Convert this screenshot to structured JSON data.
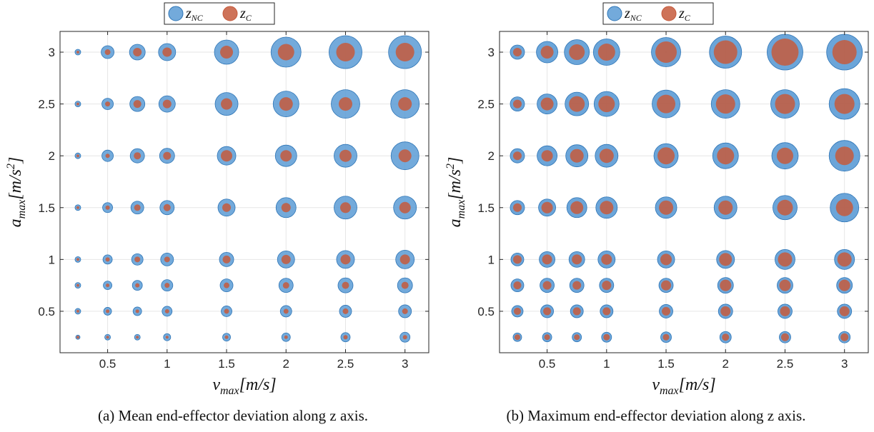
{
  "captions": {
    "a": "(a) Mean end-effector deviation along z axis.",
    "b": "(b) Maximum end-effector deviation along z axis."
  },
  "legend": {
    "nc": {
      "main": "z",
      "sub": "NC"
    },
    "c": {
      "main": "z",
      "sub": "C"
    }
  },
  "axis_labels": {
    "x": {
      "main": "v",
      "sub": "max",
      "unit": "[m/s]"
    },
    "y": {
      "main": "a",
      "sub": "max",
      "unit": "[m/s",
      "sup": "2",
      "close": "]"
    }
  },
  "colors": {
    "nc": "#5b9bd5",
    "nc_stroke": "#2e75b6",
    "c": "#c55a3c"
  },
  "chart_data": [
    {
      "id": "a",
      "type": "scatter",
      "marker": "bubble",
      "title": "",
      "x_values": [
        0.25,
        0.5,
        0.75,
        1,
        1.5,
        2,
        2.5,
        3
      ],
      "y_values": [
        0.25,
        0.5,
        0.75,
        1,
        1.5,
        2,
        2.5,
        3
      ],
      "xticks": [
        "0.5",
        "1",
        "1.5",
        "2",
        "2.5",
        "3"
      ],
      "yticks": [
        "0.5",
        "1",
        "1.5",
        "2",
        "2.5",
        "3"
      ],
      "xlim": [
        0.1,
        3.2
      ],
      "ylim": [
        0.1,
        3.2
      ],
      "grid": true,
      "legend_position": "top-center",
      "series": [
        {
          "name": "z_NC",
          "sizes": [
            [
              3,
              4,
              4,
              5,
              5.5,
              6,
              6.5,
              7
            ],
            [
              4,
              5.5,
              6,
              7,
              7.5,
              8,
              8.5,
              9
            ],
            [
              4,
              6,
              7,
              8,
              9,
              10,
              10.5,
              10.5
            ],
            [
              4,
              6.5,
              8,
              9,
              10,
              12,
              12.5,
              13
            ],
            [
              4,
              7,
              9,
              10,
              12,
              14,
              16,
              16
            ],
            [
              4,
              8,
              10,
              10.5,
              13,
              15,
              16,
              19.5
            ],
            [
              4,
              8,
              10.5,
              11.5,
              16,
              18,
              20,
              20
            ],
            [
              4,
              9,
              11,
              12,
              17,
              21,
              23,
              23
            ]
          ]
        },
        {
          "name": "z_C",
          "sizes": [
            [
              2,
              2,
              2,
              2,
              2.5,
              2.5,
              3,
              3
            ],
            [
              2,
              2.5,
              2.5,
              3,
              3.5,
              3.5,
              4,
              4
            ],
            [
              2,
              2.5,
              3,
              3.5,
              4,
              4.5,
              5,
              5
            ],
            [
              2,
              3,
              4,
              4,
              5.5,
              6.5,
              7,
              7
            ],
            [
              2,
              3,
              4.5,
              5,
              6,
              6.5,
              7.5,
              8
            ],
            [
              2,
              3,
              5,
              5.5,
              8,
              8,
              8.5,
              9
            ],
            [
              2,
              3.5,
              5.5,
              6,
              8,
              9.5,
              9.5,
              9.5
            ],
            [
              2,
              4,
              6,
              6.5,
              9,
              11.5,
              13,
              13
            ]
          ]
        }
      ]
    },
    {
      "id": "b",
      "type": "scatter",
      "marker": "bubble",
      "title": "",
      "x_values": [
        0.25,
        0.5,
        0.75,
        1,
        1.5,
        2,
        2.5,
        3
      ],
      "y_values": [
        0.25,
        0.5,
        0.75,
        1,
        1.5,
        2,
        2.5,
        3
      ],
      "xticks": [
        "0.5",
        "1",
        "1.5",
        "2",
        "2.5",
        "3"
      ],
      "yticks": [
        "0.5",
        "1",
        "1.5",
        "2",
        "2.5",
        "3"
      ],
      "xlim": [
        0.1,
        3.2
      ],
      "ylim": [
        0.1,
        3.2
      ],
      "grid": true,
      "legend_position": "top-center",
      "series": [
        {
          "name": "z_NC",
          "sizes": [
            [
              6,
              6.5,
              6.5,
              7,
              7.5,
              8,
              8,
              8
            ],
            [
              8,
              9,
              9,
              9,
              9.5,
              10,
              10,
              10
            ],
            [
              9,
              10,
              10,
              10,
              10,
              11,
              11,
              11
            ],
            [
              9,
              11,
              11,
              12,
              12,
              12.5,
              14,
              14
            ],
            [
              10,
              12,
              14,
              15,
              15,
              16,
              17,
              20
            ],
            [
              10,
              14,
              15.5,
              16,
              17,
              18,
              18.5,
              21.5
            ],
            [
              10,
              14,
              16.5,
              17.5,
              19.5,
              20,
              20,
              21.5
            ],
            [
              10,
              15,
              17.5,
              18.5,
              20.5,
              22.5,
              25,
              25
            ]
          ]
        },
        {
          "name": "z_C",
          "sizes": [
            [
              4,
              4,
              4,
              4.5,
              4.5,
              5,
              5.5,
              5.5
            ],
            [
              5,
              5.5,
              5.5,
              5.5,
              6,
              7,
              7,
              7
            ],
            [
              5.5,
              6,
              6,
              6.5,
              7,
              8,
              8,
              8
            ],
            [
              6,
              7,
              7,
              7.5,
              8,
              9,
              10,
              10
            ],
            [
              6,
              8,
              9,
              9.5,
              10,
              10,
              11,
              12
            ],
            [
              6,
              8,
              9.5,
              10,
              12,
              12,
              11.5,
              13
            ],
            [
              6,
              9,
              11,
              11.5,
              13,
              13.5,
              14,
              14
            ],
            [
              6,
              9,
              11,
              12,
              15,
              16.5,
              19,
              17
            ]
          ]
        }
      ]
    }
  ]
}
